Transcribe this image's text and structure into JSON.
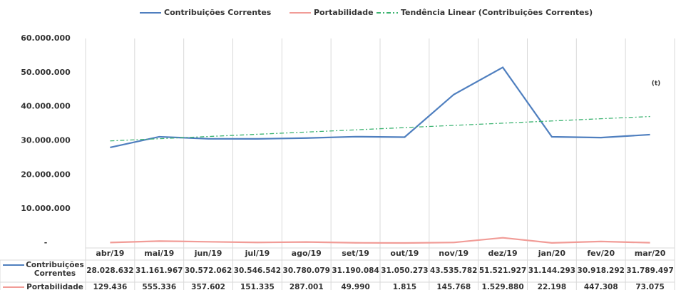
{
  "chart_data": {
    "type": "line",
    "categories": [
      "abr/19",
      "mai/19",
      "jun/19",
      "jul/19",
      "ago/19",
      "set/19",
      "out/19",
      "nov/19",
      "dez/19",
      "jan/20",
      "fev/20",
      "mar/20"
    ],
    "series": [
      {
        "name": "Contribuições Correntes",
        "color": "#4f7fbf",
        "values": [
          28028632,
          31161967,
          30572062,
          30546542,
          30780079,
          31190084,
          31050273,
          43535782,
          51521927,
          31144293,
          30918292,
          31789497
        ],
        "value_labels": [
          "28.028.632",
          "31.161.967",
          "30.572.062",
          "30.546.542",
          "30.780.079",
          "31.190.084",
          "31.050.273",
          "43.535.782",
          "51.521.927",
          "31.144.293",
          "30.918.292",
          "31.789.497"
        ]
      },
      {
        "name": "Portabilidade",
        "color": "#f19c97",
        "values": [
          129436,
          555336,
          357602,
          151335,
          287001,
          49990,
          1815,
          145768,
          1529880,
          22198,
          447308,
          73075
        ],
        "value_labels": [
          "129.436",
          "555.336",
          "357.602",
          "151.335",
          "287.001",
          "49.990",
          "1.815",
          "145.768",
          "1.529.880",
          "22.198",
          "447.308",
          "73.075"
        ]
      },
      {
        "name": "Tendência Linear (Contribuições Correntes)",
        "color": "#3cb371",
        "dashed": true,
        "values": [
          29940000,
          30590000,
          31240000,
          31890000,
          32540000,
          33190000,
          33850000,
          34500000,
          35150000,
          35800000,
          36450000,
          37100000
        ]
      }
    ],
    "ylim": [
      0,
      60000000
    ],
    "yticks": [
      {
        "value": 0,
        "label": "-"
      },
      {
        "value": 10000000,
        "label": "10.000.000"
      },
      {
        "value": 20000000,
        "label": "20.000.000"
      },
      {
        "value": 30000000,
        "label": "30.000.000"
      },
      {
        "value": 40000000,
        "label": "40.000.000"
      },
      {
        "value": 50000000,
        "label": "50.000.000"
      },
      {
        "value": 60000000,
        "label": "60.000.000"
      }
    ],
    "annotation": "(t)"
  }
}
